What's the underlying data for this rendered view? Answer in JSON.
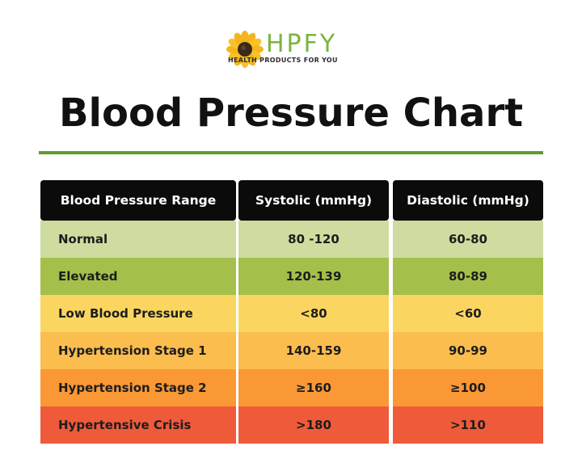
{
  "logo": {
    "wordmark": "HPFY",
    "tagline": "HEALTH PRODUCTS FOR YOU",
    "icon": "sunflower-icon",
    "colors": {
      "petal": "#f5b51f",
      "center": "#3a2a1a",
      "wordmark": "#7ab43f"
    }
  },
  "title": "Blood Pressure Chart",
  "accent_color": "#5e9a34",
  "table": {
    "headers": [
      "Blood Pressure Range",
      "Systolic (mmHg)",
      "Diastolic (mmHg)"
    ],
    "rows": [
      {
        "range": "Normal",
        "systolic": "80 -120",
        "diastolic": "60-80",
        "color": "#cfdc9f"
      },
      {
        "range": "Elevated",
        "systolic": "120-139",
        "diastolic": "80-89",
        "color": "#a4c04b"
      },
      {
        "range": "Low Blood Pressure",
        "systolic": "<80",
        "diastolic": "<60",
        "color": "#fad660"
      },
      {
        "range": "Hypertension Stage 1",
        "systolic": "140-159",
        "diastolic": "90-99",
        "color": "#fbbd4e"
      },
      {
        "range": "Hypertension Stage 2",
        "systolic": "≥160",
        "diastolic": "≥100",
        "color": "#f99835"
      },
      {
        "range": "Hypertensive Crisis",
        "systolic": ">180",
        "diastolic": ">110",
        "color": "#ef5a3b"
      }
    ]
  }
}
